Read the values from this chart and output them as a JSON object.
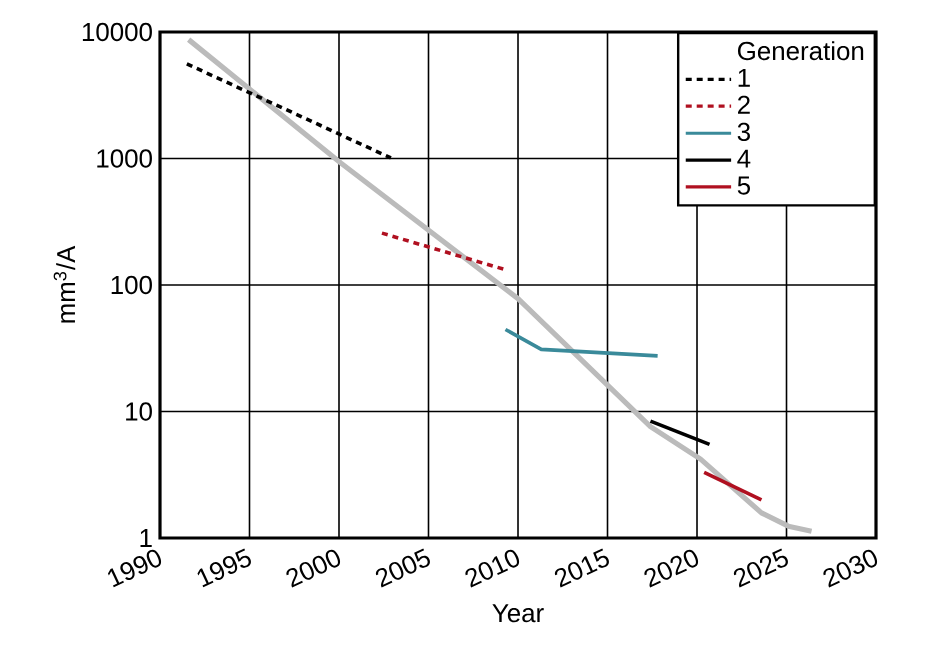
{
  "chart_data": {
    "type": "line",
    "xlabel": "Year",
    "ylabel": "mm$^{3}$/A",
    "legend_title": "Generation",
    "log": "y",
    "grid": true,
    "legend": "top right",
    "marker": "none",
    "xlim": [
      1990,
      2030
    ],
    "xticks": [
      1990,
      1995,
      2000,
      2005,
      2010,
      2015,
      2020,
      2025,
      2030
    ],
    "ylim": [
      1,
      10000
    ],
    "yticks": [
      1,
      10,
      100,
      1000,
      10000
    ],
    "series": [
      {
        "color": "#bbbbbb",
        "x": [
          1991.6,
          2000.1,
          2010,
          2017.4,
          2020.2,
          2023.6,
          2025.1,
          2026.4
        ],
        "values": [
          8700,
          920,
          78,
          7.6,
          4.2,
          1.58,
          1.24,
          1.13
        ]
      },
      {
        "name": "1",
        "color": "#000000",
        "line_style": "dashed",
        "x": [
          1991.5,
          2002.9
        ],
        "values": [
          5600,
          1010
        ]
      },
      {
        "name": "2",
        "color": "#b01020",
        "line_style": "dashed",
        "x": [
          2002.4,
          2009.3
        ],
        "values": [
          257,
          132
        ]
      },
      {
        "name": "3",
        "color": "#3a8a9a",
        "line_style": "solid",
        "x": [
          2009.3,
          2011.3,
          2017.8
        ],
        "values": [
          44.5,
          31,
          27.5
        ]
      },
      {
        "name": "4",
        "color": "#000000",
        "line_style": "solid",
        "x": [
          2017.4,
          2020.7
        ],
        "values": [
          8.4,
          5.5
        ]
      },
      {
        "name": "5",
        "color": "#b01020",
        "line_style": "solid",
        "x": [
          2020.4,
          2023.6
        ],
        "values": [
          3.3,
          2.0
        ]
      }
    ]
  }
}
